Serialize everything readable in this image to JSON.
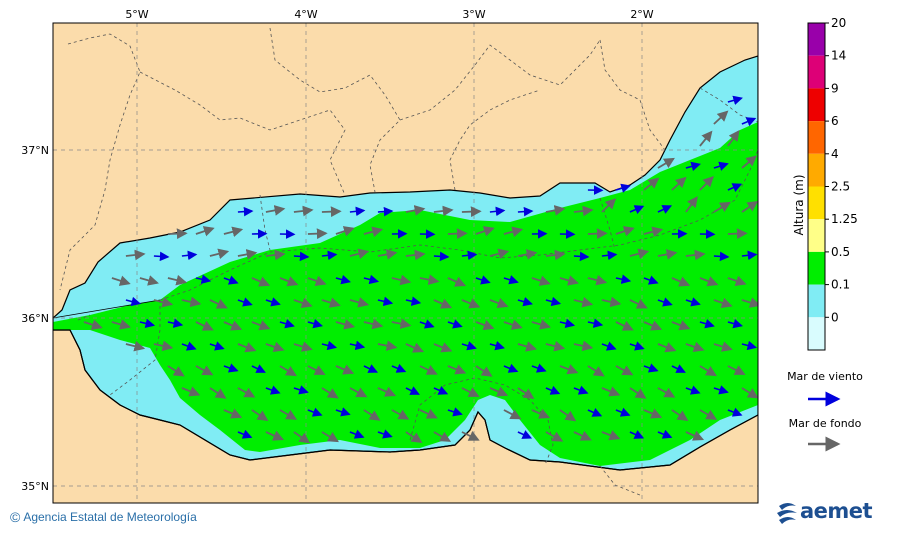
{
  "map": {
    "lon_labels": [
      "5°W",
      "4°W",
      "3°W",
      "2°W"
    ],
    "lat_labels": [
      "37°N",
      "36°N",
      "35°N"
    ]
  },
  "colorbar": {
    "title": "Altura (m)",
    "ticks": [
      "20",
      "14",
      "9",
      "6",
      "4",
      "2.5",
      "1.25",
      "0.5",
      "0.1",
      "0"
    ],
    "colors": [
      "#9900aa",
      "#dd0077",
      "#ee0000",
      "#ff6600",
      "#ffaa00",
      "#ffe000",
      "#ffff88",
      "#00ee00",
      "#80ecf4",
      "#d9fcfe"
    ]
  },
  "legend": {
    "wind_sea_label": "Mar de viento",
    "wind_sea_color": "#0000dd",
    "swell_label": "Mar de fondo",
    "swell_color": "#666666"
  },
  "footer": {
    "copyright_symbol": "©",
    "agency": "Agencia Estatal de Meteorología",
    "logo_text": "aemet"
  },
  "colors": {
    "land": "#fbdcab",
    "sea_green": "#00ee00",
    "sea_cyan": "#80ecf4",
    "sea_white": "#d9fcfe"
  }
}
